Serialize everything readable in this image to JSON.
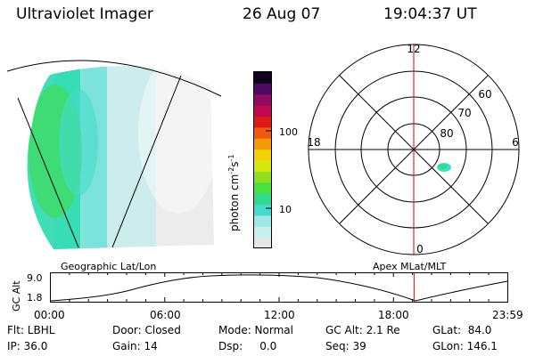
{
  "header": {
    "title": "Ultraviolet Imager",
    "date": "26 Aug 07",
    "time": "19:04:37 UT"
  },
  "colorbar": {
    "unit_label": "photon cm",
    "unit_exp1": "-2",
    "unit_s": "s",
    "unit_exp2": "-1",
    "tick_100": "100",
    "tick_10": "10",
    "colors": [
      "#e6e6e6",
      "#c8f0f0",
      "#9ee8e8",
      "#45dccc",
      "#30d890",
      "#4ae040",
      "#8ee020",
      "#d6e810",
      "#f4d008",
      "#f49a08",
      "#ee5a10",
      "#e01818",
      "#c00850",
      "#900a60",
      "#4e0a60",
      "#100020"
    ]
  },
  "polar": {
    "mlt_labels": [
      "12",
      "18",
      "6",
      "0"
    ],
    "lat_labels": [
      "60",
      "70",
      "80"
    ]
  },
  "timeline": {
    "left_label": "Geographic Lat/Lon",
    "right_label": "Apex  MLat/MLT",
    "ylabel": "GC Alt",
    "y_top": "9.0",
    "y_bottom": "1.8",
    "ticks": [
      "00:00",
      "06:00",
      "12:00",
      "18:00",
      "23:59"
    ],
    "current_time_marker_hours": 19.08,
    "current_marker_color": "#e00000"
  },
  "info": {
    "filter": "Flt: LBHL",
    "ip": "IP: 36.0",
    "door": "Door: Closed",
    "gain": "Gain: 14",
    "mode": "Mode: Normal",
    "dsp": "Dsp:     0.0",
    "gc_alt": "GC Alt: 2.1 Re",
    "seq": "Seq: 39",
    "glat": "GLat:  84.0",
    "glon": "GLon: 146.1"
  }
}
